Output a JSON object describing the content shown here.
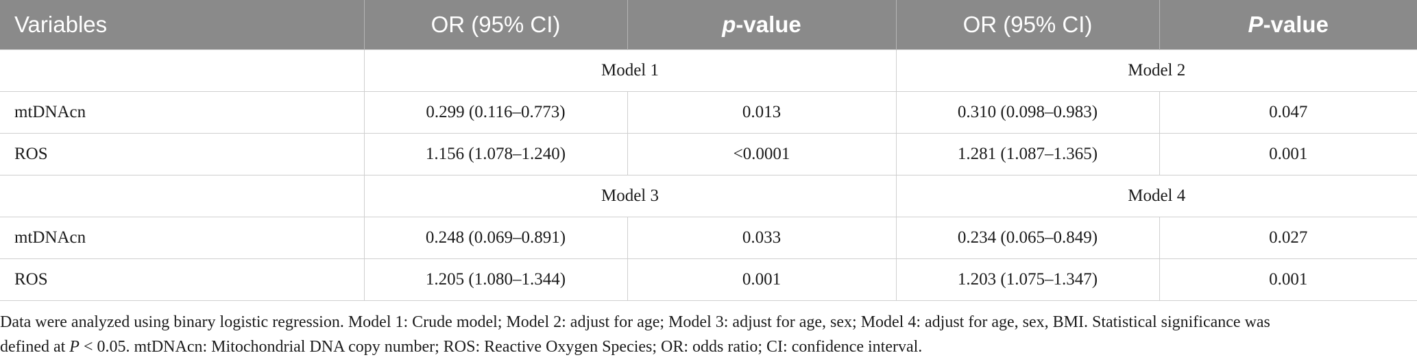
{
  "header": {
    "variables": "Variables",
    "or_1": "OR (95% CI)",
    "p_1_italic": "p",
    "p_1_rest": "-value",
    "or_2": "OR (95% CI)",
    "p_2_italic": "P",
    "p_2_rest": "-value"
  },
  "groups": [
    {
      "left_model": "Model 1",
      "right_model": "Model 2",
      "rows": [
        {
          "variable": "mtDNAcn",
          "or_left": "0.299 (0.116–0.773)",
          "p_left": "0.013",
          "or_right": "0.310 (0.098–0.983)",
          "p_right": "0.047"
        },
        {
          "variable": "ROS",
          "or_left": "1.156 (1.078–1.240)",
          "p_left": "<0.0001",
          "or_right": "1.281 (1.087–1.365)",
          "p_right": "0.001"
        }
      ]
    },
    {
      "left_model": "Model 3",
      "right_model": "Model 4",
      "rows": [
        {
          "variable": "mtDNAcn",
          "or_left": "0.248 (0.069–0.891)",
          "p_left": "0.033",
          "or_right": "0.234 (0.065–0.849)",
          "p_right": "0.027"
        },
        {
          "variable": "ROS",
          "or_left": "1.205 (1.080–1.344)",
          "p_left": "0.001",
          "or_right": "1.203 (1.075–1.347)",
          "p_right": "0.001"
        }
      ]
    }
  ],
  "footnote": {
    "line1": "Data were analyzed using binary logistic regression. Model 1: Crude model; Model 2: adjust for age; Model 3: adjust for age, sex; Model 4: adjust for age, sex, BMI. Statistical significance was",
    "line2_a": "defined at ",
    "line2_p": "P",
    "line2_b": " < 0.05. mtDNAcn: Mitochondrial DNA copy number; ROS: Reactive Oxygen Species; OR: odds ratio; CI: confidence interval."
  }
}
